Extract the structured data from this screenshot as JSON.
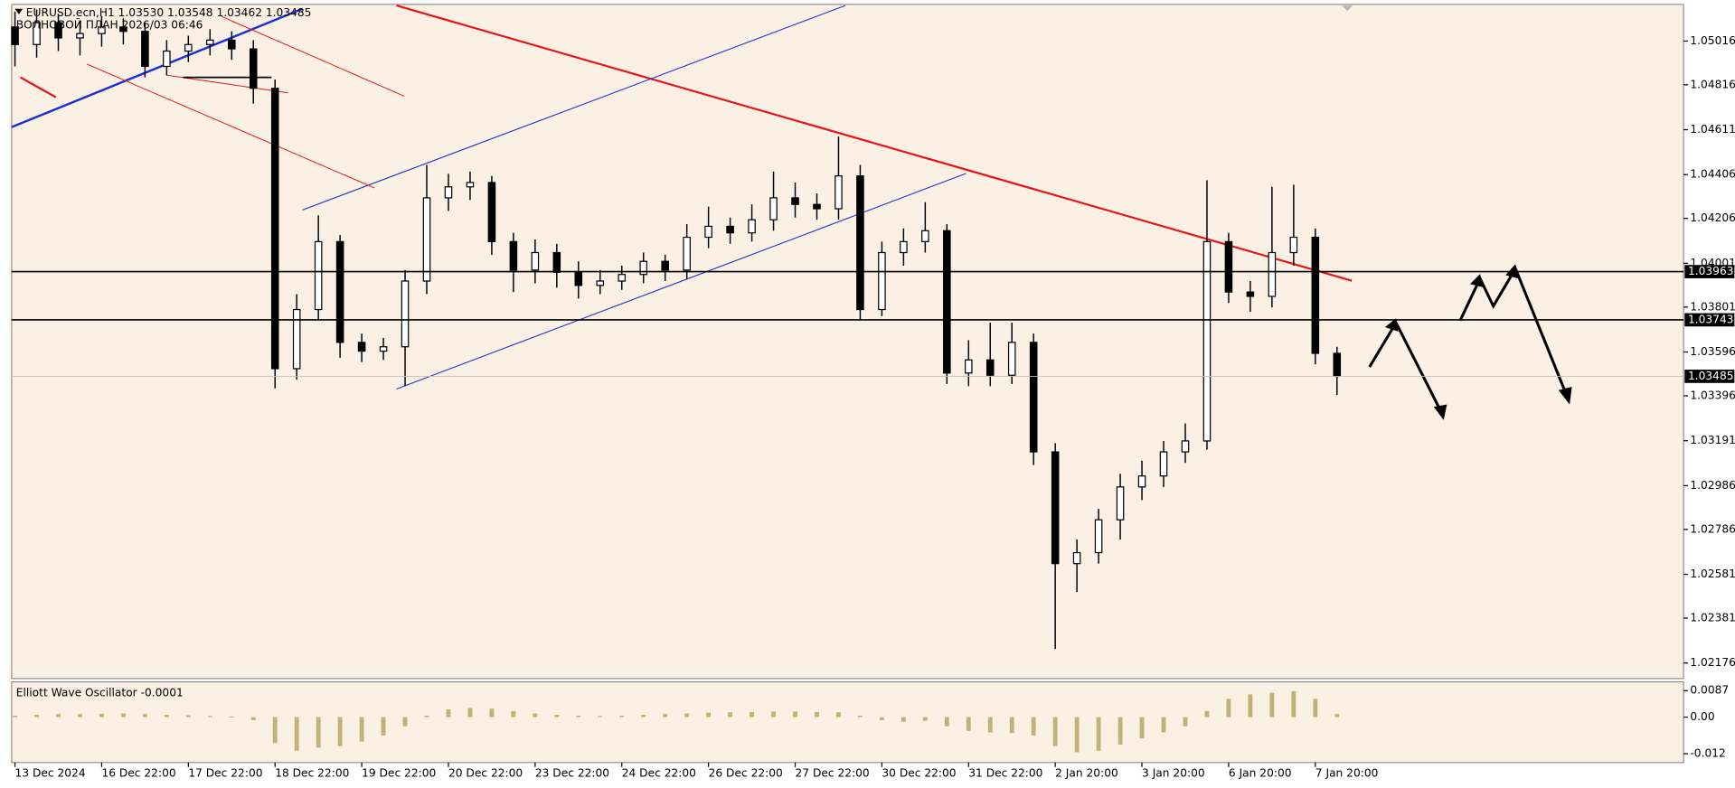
{
  "chart_data": {
    "type": "candlestick",
    "title": "EURUSD.ecn,H1  1.03530 1.03548 1.03462 1.03485",
    "subtitle": "ВОЛНОВОЙ ПЛАН 2026/03 06:46",
    "candle_color": "#000000",
    "bull_fill": "#ffffff",
    "background": "#fbf0e4",
    "open": [
      1.0508,
      1.05,
      1.051,
      1.0503,
      1.0505,
      1.0508,
      1.0506,
      1.049,
      1.0497,
      1.05,
      1.0502,
      1.0498,
      1.048,
      1.0352,
      1.0379,
      1.041,
      1.0364,
      1.036,
      1.0362,
      1.0392,
      1.043,
      1.0435,
      1.0437,
      1.041,
      1.0397,
      1.0405,
      1.0396,
      1.039,
      1.0392,
      1.0395,
      1.0401,
      1.0397,
      1.0412,
      1.0417,
      1.0414,
      1.042,
      1.043,
      1.0427,
      1.0425,
      1.044,
      1.0379,
      1.0405,
      1.041,
      1.0415,
      1.035,
      1.0356,
      1.0349,
      1.0364,
      1.0314,
      1.0263,
      1.0268,
      1.0283,
      1.0298,
      1.0303,
      1.0314,
      1.0319,
      1.041,
      1.0387,
      1.0385,
      1.0405,
      1.0412,
      1.0359
    ],
    "high": [
      1.0515,
      1.0516,
      1.0514,
      1.0511,
      1.0513,
      1.0512,
      1.051,
      1.0502,
      1.0504,
      1.0507,
      1.0506,
      1.0502,
      1.0484,
      1.0386,
      1.0422,
      1.0413,
      1.0368,
      1.0366,
      1.0397,
      1.0445,
      1.0441,
      1.0442,
      1.044,
      1.0414,
      1.0411,
      1.0409,
      1.0401,
      1.0397,
      1.0399,
      1.0405,
      1.0404,
      1.0418,
      1.0426,
      1.0421,
      1.0427,
      1.0442,
      1.0437,
      1.0432,
      1.0458,
      1.0445,
      1.041,
      1.0416,
      1.0428,
      1.0418,
      1.0365,
      1.0373,
      1.0373,
      1.0368,
      1.0318,
      1.0274,
      1.0288,
      1.0304,
      1.031,
      1.0319,
      1.0327,
      1.0438,
      1.0414,
      1.0392,
      1.0435,
      1.0436,
      1.0416,
      1.0362
    ],
    "low": [
      1.049,
      1.0494,
      1.0497,
      1.0495,
      1.0499,
      1.05,
      1.0485,
      1.0486,
      1.0492,
      1.0495,
      1.0493,
      1.0473,
      1.0343,
      1.0347,
      1.0374,
      1.0357,
      1.0355,
      1.0356,
      1.0344,
      1.0386,
      1.0424,
      1.0429,
      1.0404,
      1.0387,
      1.0391,
      1.0389,
      1.0384,
      1.0386,
      1.0388,
      1.0391,
      1.0392,
      1.0393,
      1.0407,
      1.0409,
      1.041,
      1.0415,
      1.0421,
      1.042,
      1.042,
      1.0374,
      1.0376,
      1.0399,
      1.0405,
      1.0345,
      1.0344,
      1.0344,
      1.0345,
      1.0308,
      1.0224,
      1.025,
      1.0263,
      1.0274,
      1.0292,
      1.0298,
      1.0309,
      1.0315,
      1.0382,
      1.0378,
      1.038,
      1.0399,
      1.0354,
      1.034
    ],
    "close": [
      1.05,
      1.051,
      1.0503,
      1.0505,
      1.0508,
      1.0506,
      1.049,
      1.0497,
      1.05,
      1.0502,
      1.0498,
      1.048,
      1.0352,
      1.0379,
      1.041,
      1.0364,
      1.036,
      1.0362,
      1.0392,
      1.043,
      1.0435,
      1.0437,
      1.041,
      1.0397,
      1.0405,
      1.0396,
      1.039,
      1.0392,
      1.0395,
      1.0401,
      1.0397,
      1.0412,
      1.0417,
      1.0414,
      1.042,
      1.043,
      1.0427,
      1.0425,
      1.044,
      1.0379,
      1.0405,
      1.041,
      1.0415,
      1.035,
      1.0356,
      1.0349,
      1.0364,
      1.0314,
      1.0263,
      1.0268,
      1.0283,
      1.0298,
      1.0303,
      1.0314,
      1.0319,
      1.041,
      1.0387,
      1.0385,
      1.0405,
      1.0412,
      1.0359,
      1.03485
    ],
    "ylim": [
      1.02105,
      1.05183
    ],
    "yticks": [
      1.05016,
      1.04816,
      1.04611,
      1.04406,
      1.04206,
      1.04001,
      1.03801,
      1.03596,
      1.03396,
      1.03191,
      1.02986,
      1.02786,
      1.02581,
      1.02381,
      1.02176
    ],
    "levels": [
      1.03963,
      1.03743
    ],
    "current_price": 1.03485,
    "xticks": [
      {
        "value": 0,
        "label": "13 Dec 2024"
      },
      {
        "value": 4,
        "label": "16 Dec 22:00"
      },
      {
        "value": 8,
        "label": "17 Dec 22:00"
      },
      {
        "value": 12,
        "label": "18 Dec 22:00"
      },
      {
        "value": 16,
        "label": "19 Dec 22:00"
      },
      {
        "value": 20,
        "label": "20 Dec 22:00"
      },
      {
        "value": 24,
        "label": "23 Dec 22:00"
      },
      {
        "value": 28,
        "label": "24 Dec 22:00"
      },
      {
        "value": 32,
        "label": "26 Dec 22:00"
      },
      {
        "value": 36,
        "label": "27 Dec 22:00"
      },
      {
        "value": 40,
        "label": "30 Dec 22:00"
      },
      {
        "value": 44,
        "label": "31 Dec 22:00"
      },
      {
        "value": 48,
        "label": "2 Jan 20:00"
      },
      {
        "value": 52,
        "label": "3 Jan 20:00"
      },
      {
        "value": 56,
        "label": "6 Jan 20:00"
      },
      {
        "value": 60,
        "label": "7 Jan 20:00"
      }
    ],
    "indicator": {
      "name": "Elliott Wave Oscillator -0.0001",
      "color": "#bfb37a",
      "values": [
        0.0005,
        0.0008,
        0.001,
        0.001,
        0.0011,
        0.0012,
        0.001,
        0.0008,
        0.0006,
        0.0004,
        0.0002,
        -0.001,
        -0.0085,
        -0.011,
        -0.01,
        -0.0095,
        -0.008,
        -0.006,
        -0.003,
        0.0005,
        0.0025,
        0.003,
        0.0028,
        0.002,
        0.0012,
        0.0008,
        0.0005,
        0.0004,
        0.0005,
        0.0008,
        0.001,
        0.0012,
        0.0015,
        0.0016,
        0.0017,
        0.0018,
        0.0018,
        0.0017,
        0.0016,
        0.0005,
        -0.001,
        -0.0015,
        -0.0012,
        -0.003,
        -0.0045,
        -0.005,
        -0.0052,
        -0.006,
        -0.0095,
        -0.0115,
        -0.011,
        -0.009,
        -0.007,
        -0.005,
        -0.003,
        0.002,
        0.006,
        0.0075,
        0.008,
        0.0085,
        0.006,
        0.001
      ],
      "ylim": [
        -0.0149,
        0.0112
      ],
      "yticks": [
        0.0087,
        {
          "value": 0,
          "label": "0.00"
        },
        -0.012
      ]
    }
  }
}
